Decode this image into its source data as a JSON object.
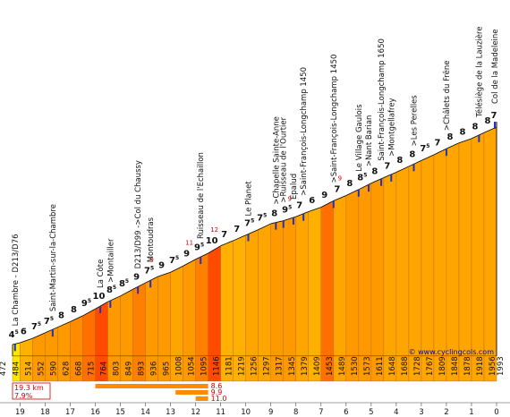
{
  "chart_data": {
    "type": "area",
    "title": "",
    "xlabel": "",
    "ylabel": "",
    "x_direction": "km remaining to summit, decreasing",
    "xlim": [
      19.3,
      0
    ],
    "ylim": [
      472,
      1993
    ],
    "km_ticks": [
      19,
      18,
      17,
      16,
      15,
      14,
      13,
      12,
      11,
      10,
      9,
      8,
      7,
      6,
      5,
      4,
      3,
      2,
      1,
      0
    ],
    "start_altitude": 472,
    "start_label_km": "19.3",
    "altitudes": [
      472,
      484,
      514,
      552,
      590,
      628,
      668,
      715,
      764,
      803,
      849,
      893,
      936,
      965,
      1008,
      1054,
      1095,
      1146,
      1181,
      1219,
      1256,
      1297,
      1317,
      1345,
      1379,
      1409,
      1453,
      1489,
      1530,
      1573,
      1611,
      1648,
      1688,
      1728,
      1767,
      1809,
      1848,
      1878,
      1918,
      1956,
      1993
    ],
    "segments": [
      {
        "grade": "4",
        "half": true,
        "color": "#ffe600"
      },
      {
        "grade": "6",
        "half": false,
        "color": "#ffb000"
      },
      {
        "grade": "7",
        "half": true,
        "color": "#ff9900"
      },
      {
        "grade": "7",
        "half": true,
        "color": "#ff9900"
      },
      {
        "grade": "8",
        "half": false,
        "color": "#ff9900"
      },
      {
        "grade": "8",
        "half": false,
        "color": "#ff8c00"
      },
      {
        "grade": "9",
        "half": true,
        "color": "#ff7000"
      },
      {
        "grade": "10",
        "half": false,
        "color": "#ff4a00"
      },
      {
        "grade": "8",
        "half": true,
        "color": "#ff9900"
      },
      {
        "grade": "8",
        "half": true,
        "color": "#ff9900"
      },
      {
        "grade": "9",
        "half": false,
        "color": "#ff8000"
      },
      {
        "grade": "7",
        "half": true,
        "color": "#ff9900"
      },
      {
        "grade": "9",
        "half": false,
        "color": "#ff9900"
      },
      {
        "grade": "7",
        "half": true,
        "color": "#ffa500"
      },
      {
        "grade": "9",
        "half": false,
        "color": "#ff9900"
      },
      {
        "grade": "9",
        "half": true,
        "color": "#ff8000"
      },
      {
        "grade": "10",
        "half": false,
        "color": "#ff4a00"
      },
      {
        "grade": "7",
        "half": false,
        "color": "#ffb000"
      },
      {
        "grade": "7",
        "half": false,
        "color": "#ffb000"
      },
      {
        "grade": "7",
        "half": true,
        "color": "#ffa500"
      },
      {
        "grade": "7",
        "half": true,
        "color": "#ffa500"
      },
      {
        "grade": "8",
        "half": false,
        "color": "#ff9900"
      },
      {
        "grade": "9",
        "half": true,
        "color": "#ff9900"
      },
      {
        "grade": "7",
        "half": false,
        "color": "#ffa500"
      },
      {
        "grade": "6",
        "half": false,
        "color": "#ffb000"
      },
      {
        "grade": "9",
        "half": false,
        "color": "#ff7000"
      },
      {
        "grade": "7",
        "half": false,
        "color": "#ffa500"
      },
      {
        "grade": "8",
        "half": false,
        "color": "#ff9900"
      },
      {
        "grade": "8",
        "half": true,
        "color": "#ff9900"
      },
      {
        "grade": "8",
        "half": false,
        "color": "#ff9900"
      },
      {
        "grade": "7",
        "half": false,
        "color": "#ffa500"
      },
      {
        "grade": "8",
        "half": false,
        "color": "#ffa500"
      },
      {
        "grade": "8",
        "half": false,
        "color": "#ffa500"
      },
      {
        "grade": "7",
        "half": true,
        "color": "#ffa500"
      },
      {
        "grade": "7",
        "half": false,
        "color": "#ffa500"
      },
      {
        "grade": "8",
        "half": false,
        "color": "#ffa500"
      },
      {
        "grade": "8",
        "half": false,
        "color": "#ffa500"
      },
      {
        "grade": "8",
        "half": false,
        "color": "#ffa500"
      },
      {
        "grade": "8",
        "half": false,
        "color": "#ffa500"
      },
      {
        "grade": "7",
        "half": false,
        "color": "#ffa500"
      }
    ],
    "max_gradients": [
      {
        "after_segment": 11,
        "value": "9"
      },
      {
        "after_segment": 14,
        "value": "11"
      },
      {
        "after_segment": 16,
        "value": "12"
      },
      {
        "after_segment": 22,
        "value": "9"
      },
      {
        "after_segment": 26,
        "value": "9"
      }
    ],
    "places": [
      {
        "km": 19.2,
        "label": "La Chambre - D213/D76"
      },
      {
        "km": 17.7,
        "label": "Saint-Martin-sur-la-Chambre"
      },
      {
        "km": 15.8,
        "label": "La Côte"
      },
      {
        "km": 15.4,
        "label": ">Montailler"
      },
      {
        "km": 14.3,
        "label": "D213/D99 ->Col du Chaussy"
      },
      {
        "km": 13.8,
        "label": "Montoudras"
      },
      {
        "km": 11.8,
        "label": "Ruisseau de l'Echaillon"
      },
      {
        "km": 9.9,
        "label": "Le Planet"
      },
      {
        "km": 8.8,
        "label": ">Chapelle Sainte-Anne"
      },
      {
        "km": 8.5,
        "label": ">Ruisseau de l'Ourtier"
      },
      {
        "km": 8.1,
        "label": "Epalud"
      },
      {
        "km": 7.7,
        "label": ">Saint-François-Longchamp 1450"
      },
      {
        "km": 6.5,
        "label": ">Saint-François-Longchamp 1450"
      },
      {
        "km": 5.5,
        "label": "Le Village Gaulois"
      },
      {
        "km": 5.1,
        "label": ">Nant Barian"
      },
      {
        "km": 4.6,
        "label": "Saint-François-Longchamp 1650"
      },
      {
        "km": 4.2,
        "label": ">Montgellafrey"
      },
      {
        "km": 3.3,
        "label": ">Les Perelles"
      },
      {
        "km": 2.0,
        "label": ">Châlets du Frêne"
      },
      {
        "km": 0.7,
        "label": "Télésiège de la Lauzière"
      },
      {
        "km": -0.2,
        "label": "Col de la Madeleine"
      }
    ],
    "stats": {
      "distance": "19.3 km",
      "avg_gradient": "7.9%"
    },
    "steepest_sections": [
      {
        "from_km": 16.0,
        "to_km": 11.5,
        "value": "8.6"
      },
      {
        "from_km": 12.8,
        "to_km": 11.5,
        "value": "9.9"
      },
      {
        "from_km": 12.0,
        "to_km": 11.5,
        "value": "11.0"
      }
    ],
    "credit": "© www.cyclingcols.com"
  }
}
